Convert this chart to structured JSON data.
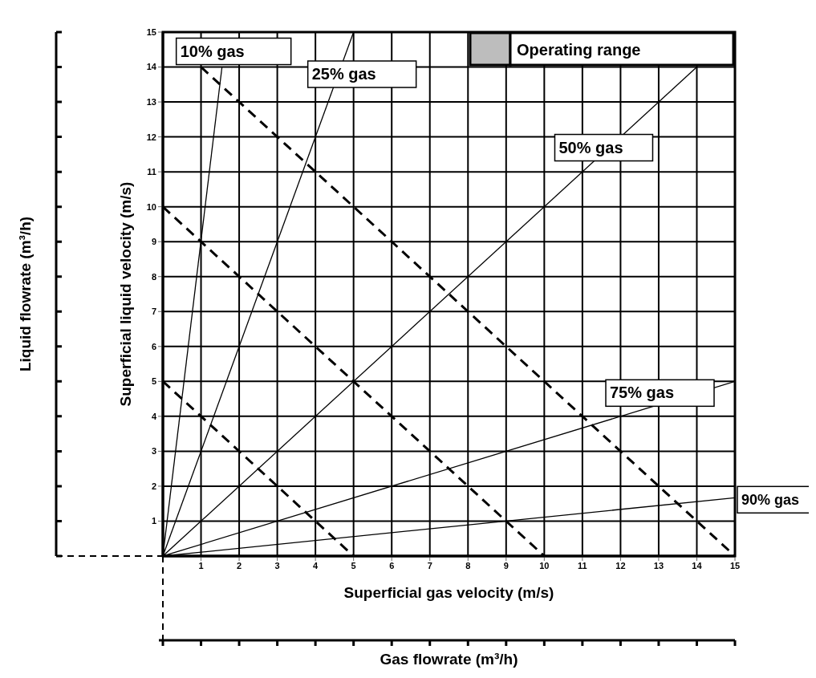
{
  "chart_data": {
    "type": "line",
    "xlabel": "Superficial  gas velocity  (m/s)",
    "ylabel": "Superficial  liquid velocity  (m/s)",
    "xlim": [
      0,
      15
    ],
    "ylim": [
      0,
      15
    ],
    "xticks": [
      {
        "value": 0,
        "label": null
      },
      1,
      2,
      3,
      4,
      5,
      6,
      7,
      8,
      9,
      10,
      11,
      12,
      13,
      14,
      15
    ],
    "yticks": [
      {
        "value": 0,
        "label": null
      },
      1,
      2,
      3,
      4,
      5,
      6,
      7,
      8,
      9,
      10,
      11,
      12,
      13,
      14,
      15
    ],
    "grid": true,
    "marker": "none",
    "line_style": "solid",
    "series": [
      {
        "name": "10% gas",
        "color": "#000000",
        "x": [
          0,
          1.55
        ],
        "values": [
          0,
          14
        ]
      },
      {
        "name": "25% gas",
        "color": "#000000",
        "x": [
          0,
          5
        ],
        "values": [
          0,
          15
        ]
      },
      {
        "name": "50% gas",
        "color": "#000000",
        "x": [
          0,
          14
        ],
        "values": [
          0,
          14
        ]
      },
      {
        "name": "75% gas",
        "color": "#000000",
        "x": [
          0,
          15
        ],
        "values": [
          0,
          5
        ]
      },
      {
        "name": "90% gas",
        "color": "#000000",
        "x": [
          0,
          15
        ],
        "values": [
          0,
          1.67
        ]
      },
      {
        "color": "#000000",
        "line_style": "dashed",
        "x": [
          0,
          5
        ],
        "values": [
          5,
          0
        ]
      },
      {
        "color": "#000000",
        "line_style": "dashed",
        "x": [
          0,
          10
        ],
        "values": [
          10,
          0
        ]
      },
      {
        "color": "#000000",
        "line_style": "dashed",
        "x": [
          1,
          15
        ],
        "values": [
          14,
          0
        ]
      }
    ],
    "annotations": [
      "Operating range",
      "Liquid flowrate  (m³/h)",
      "Gas flowrate  (m³/h)"
    ]
  }
}
